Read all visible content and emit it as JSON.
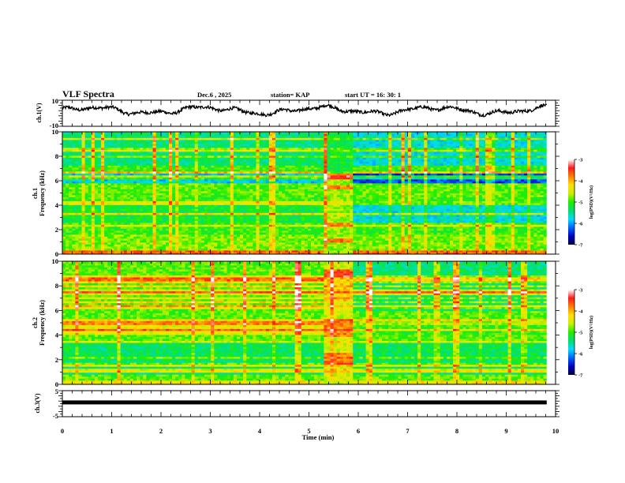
{
  "header": {
    "title": "VLF Spectra",
    "date": "Dec.6  , 2025",
    "station": "station= KAP",
    "start": "start  UT =   16: 30: 1"
  },
  "chart_data": [
    {
      "type": "line",
      "name": "ch1-waveform",
      "ylabel": "ch.1(V)",
      "ylim": [
        -10,
        10
      ],
      "yticks": [
        "10",
        "-10"
      ],
      "xlim": [
        0,
        10
      ],
      "data_end_min": 9.82,
      "series": [
        {
          "name": "ch.1",
          "approx_level_V": 2.5,
          "approx_range_V": [
            -3,
            6
          ]
        }
      ]
    },
    {
      "type": "heatmap",
      "name": "ch1-spectrogram",
      "ylabel_line1": "ch.1",
      "ylabel_line2": "Frequency  (kHz)",
      "ylim": [
        0,
        10
      ],
      "yticks": [
        "0",
        "2",
        "4",
        "6",
        "8",
        "10"
      ],
      "xlim": [
        0,
        10
      ],
      "data_end_min": 9.82,
      "burst_interval_min": [
        5.3,
        5.9
      ],
      "colorbar": {
        "label": "log(PSD)(V²/Hz)",
        "range": [
          -7,
          -3
        ],
        "ticks": [
          "-3",
          "-4",
          "-5",
          "-6",
          "-7"
        ]
      }
    },
    {
      "type": "heatmap",
      "name": "ch2-spectrogram",
      "ylabel_line1": "ch.2",
      "ylabel_line2": "Frequency  (kHz)",
      "ylim": [
        0,
        10
      ],
      "yticks": [
        "0",
        "2",
        "4",
        "6",
        "8",
        "10"
      ],
      "xlim": [
        0,
        10
      ],
      "data_end_min": 9.82,
      "burst_interval_min": [
        5.3,
        5.9
      ],
      "colorbar": {
        "label": "log(PSD)(V²/Hz)",
        "range": [
          -7,
          -3
        ],
        "ticks": [
          "-3",
          "-4",
          "-5",
          "-6",
          "-7"
        ]
      }
    },
    {
      "type": "line",
      "name": "ch3-waveform",
      "ylabel": "ch.3(V)",
      "ylim": [
        -5,
        5
      ],
      "yticks": [
        "5",
        "0",
        "-5"
      ],
      "xlim": [
        0,
        10
      ],
      "data_end_min": 9.82,
      "series": [
        {
          "name": "ch.3",
          "approx_level_V": 0.5
        }
      ]
    }
  ],
  "xaxis": {
    "label": "Time  (min)",
    "ticks": [
      "0",
      "1",
      "2",
      "3",
      "4",
      "5",
      "6",
      "7",
      "8",
      "9",
      "10"
    ]
  },
  "colors": {
    "colormap": [
      "#000040",
      "#0000c8",
      "#0064ff",
      "#00dcff",
      "#00e070",
      "#22ee00",
      "#c8f000",
      "#ffe000",
      "#ff8000",
      "#ff1a1a",
      "#ffffff"
    ]
  }
}
